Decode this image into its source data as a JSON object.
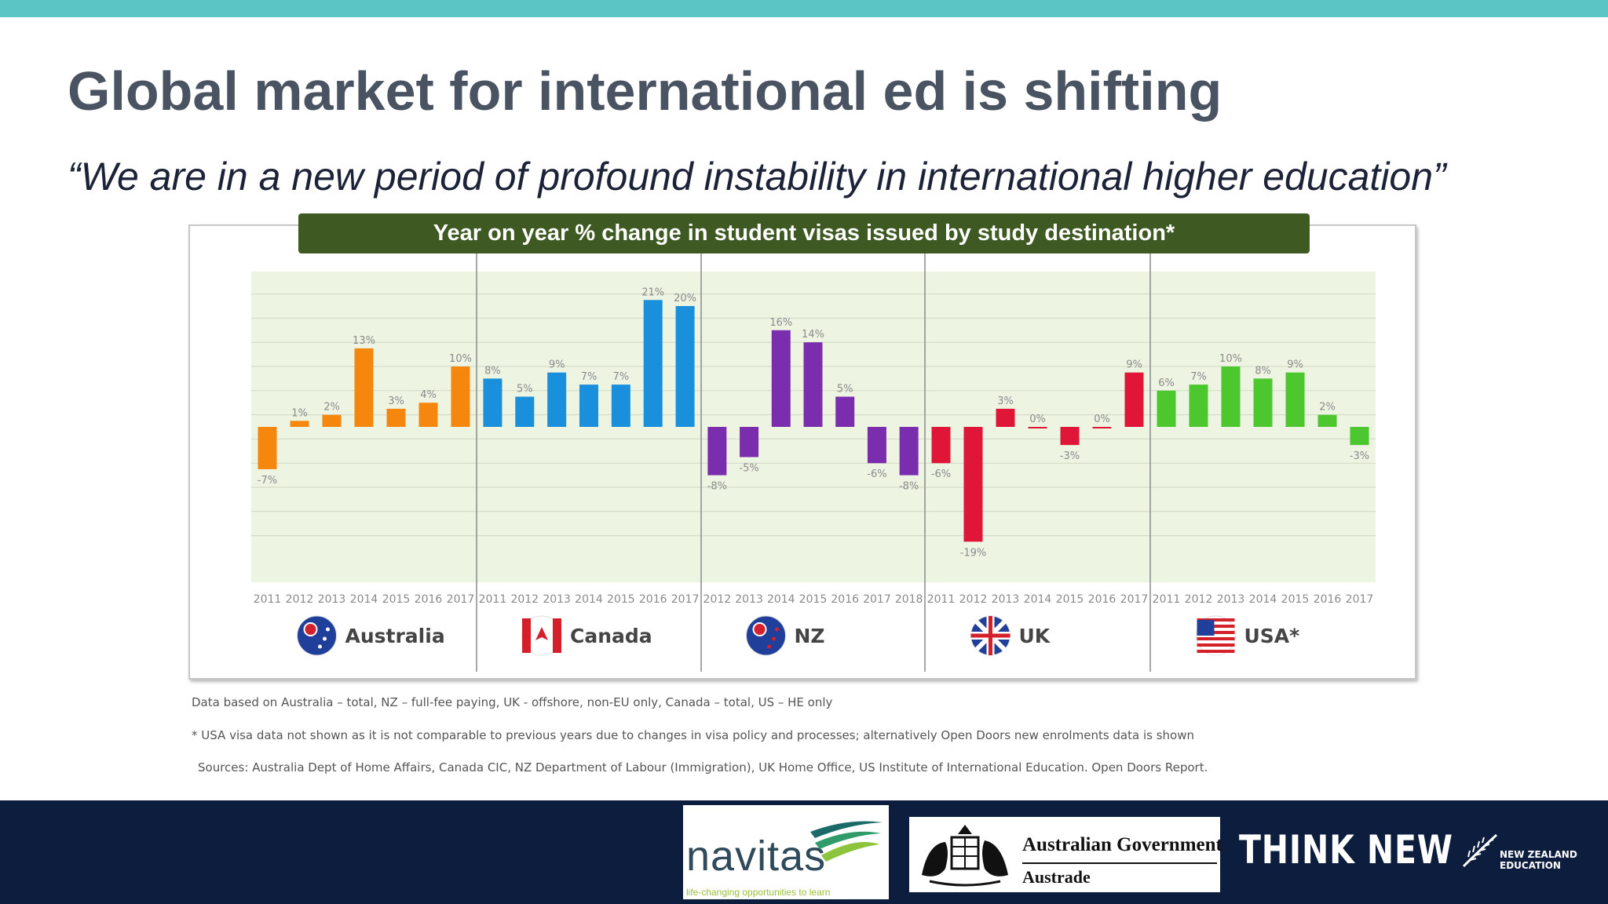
{
  "slide": {
    "title": "Global market for international ed is shifting",
    "quote": "“We are in a new period of profound instability in international higher education”",
    "chart_heading": "Year on year % change in student visas issued by study destination*"
  },
  "notes": [
    "Data based on Australia – total, NZ – full-fee paying, UK - offshore, non-EU only, Canada – total, US – HE only",
    "* USA visa data not shown as it is not comparable to previous years due to changes in visa policy and processes; alternatively Open Doors new enrolments data is shown",
    "Sources:  Australia Dept of Home Affairs, Canada CIC, NZ Department of Labour (Immigration), UK Home Office, US Institute of International Education. Open Doors Report."
  ],
  "logos": {
    "navitas": "navitas",
    "navitas_tagline": "life-changing opportunities to learn",
    "gov_line1": "Australian Government",
    "gov_line2": "Austrade",
    "think_new": "THINK NEW",
    "nz_line1": "NEW ZEALAND",
    "nz_line2": "EDUCATION"
  },
  "colors": {
    "top_band": "#5bc4c4",
    "banner": "#3e5a22",
    "footer": "#0d1d3d",
    "plot_bg": "#edf5e2"
  },
  "chart_data": {
    "type": "bar",
    "title": "Year on year % change in student visas issued by study destination*",
    "ylim": [
      -20,
      22
    ],
    "grid": true,
    "unit": "%",
    "groups": [
      {
        "name": "Australia",
        "flag": "australia-flag",
        "color": "#f5870f",
        "categories": [
          "2011",
          "2012",
          "2013",
          "2014",
          "2015",
          "2016",
          "2017"
        ],
        "values": [
          -7,
          1,
          2,
          13,
          3,
          4,
          10
        ],
        "labels": [
          "-7%",
          "1%",
          "2%",
          "13%",
          "3%",
          "4%",
          "10%"
        ]
      },
      {
        "name": "Canada",
        "flag": "canada-flag",
        "color": "#1a8fdc",
        "categories": [
          "2011",
          "2012",
          "2013",
          "2014",
          "2015",
          "2016",
          "2017"
        ],
        "values": [
          8,
          5,
          9,
          7,
          7,
          21,
          20
        ],
        "labels": [
          "8%",
          "5%",
          "9%",
          "7%",
          "7%",
          "21%",
          "20%"
        ]
      },
      {
        "name": "NZ",
        "flag": "nz-flag",
        "color": "#7a2eae",
        "categories": [
          "2012",
          "2013",
          "2014",
          "2015",
          "2016",
          "2017",
          "2018"
        ],
        "values": [
          -8,
          -5,
          16,
          14,
          5,
          -6,
          -8
        ],
        "labels": [
          "-8%",
          "-5%",
          "16%",
          "14%",
          "5%",
          "-6%",
          "-8%"
        ]
      },
      {
        "name": "UK",
        "flag": "uk-flag",
        "color": "#e01638",
        "categories": [
          "2011",
          "2012",
          "2013",
          "2014",
          "2015",
          "2016",
          "2017"
        ],
        "values": [
          -6,
          -19,
          3,
          0,
          -3,
          0,
          9
        ],
        "labels": [
          "-6%",
          "-19%",
          "3%",
          "0%",
          "-3%",
          "0%",
          "9%"
        ]
      },
      {
        "name": "USA*",
        "flag": "usa-flag",
        "color": "#4cc72e",
        "categories": [
          "2011",
          "2012",
          "2013",
          "2014",
          "2015",
          "2016",
          "2017"
        ],
        "values": [
          6,
          7,
          10,
          8,
          9,
          2,
          -3
        ],
        "labels": [
          "6%",
          "7%",
          "10%",
          "8%",
          "9%",
          "2%",
          "-3%"
        ]
      }
    ]
  }
}
